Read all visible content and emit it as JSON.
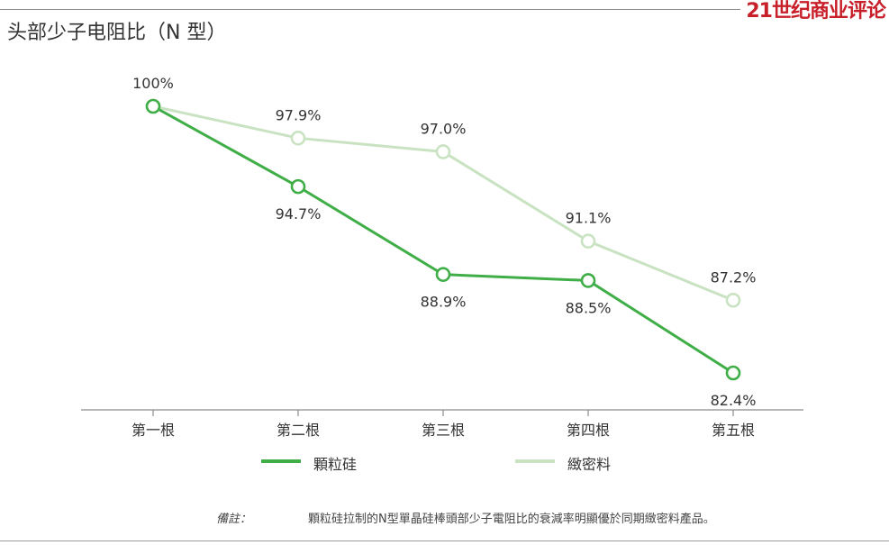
{
  "header": {
    "title": "头部少子电阻比（N 型）",
    "brand": "21世纪商业评论"
  },
  "chart_data": {
    "type": "line",
    "title": "头部少子电阻比（N 型）",
    "categories": [
      "第一根",
      "第二根",
      "第三根",
      "第四根",
      "第五根"
    ],
    "series": [
      {
        "name": "顆粒硅",
        "values": [
          100,
          94.7,
          88.9,
          88.5,
          82.4
        ],
        "color": "#3fae47"
      },
      {
        "name": "緻密料",
        "values": [
          100,
          97.9,
          97.0,
          91.1,
          87.2
        ],
        "color": "#c9e3c2"
      }
    ],
    "value_labels": [
      [
        "",
        "94.7%",
        "88.9%",
        "88.5%",
        "82.4%"
      ],
      [
        "100%",
        "97.9%",
        "97.0%",
        "91.1%",
        "87.2%"
      ]
    ],
    "ylim": [
      80,
      102
    ],
    "xlabel": "",
    "ylabel": "",
    "grid": false,
    "legend": "bottom"
  },
  "footnote": {
    "label": "備註：",
    "text": "顆粒硅拉制的N型單晶硅棒頭部少子電阻比的衰減率明顯優於同期緻密料產品。"
  }
}
